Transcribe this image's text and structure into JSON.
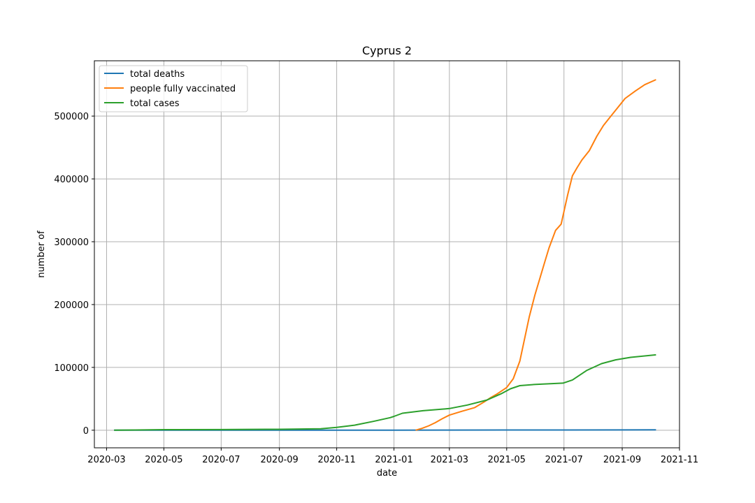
{
  "chart_data": {
    "type": "line",
    "title": "Cyprus 2",
    "xlabel": "date",
    "ylabel": "number of",
    "x_scale": "date",
    "xlim": [
      "2020-02-17",
      "2021-11-01"
    ],
    "ylim": [
      -28000,
      588000
    ],
    "x_ticks": [
      "2020-03-01",
      "2020-05-01",
      "2020-07-01",
      "2020-09-01",
      "2020-11-01",
      "2021-01-01",
      "2021-03-01",
      "2021-05-01",
      "2021-07-01",
      "2021-09-01",
      "2021-11-01"
    ],
    "x_tick_labels": [
      "2020-03",
      "2020-05",
      "2020-07",
      "2020-09",
      "2020-11",
      "2021-01",
      "2021-03",
      "2021-05",
      "2021-07",
      "2021-09",
      "2021-11"
    ],
    "y_ticks": [
      0,
      100000,
      200000,
      300000,
      400000,
      500000
    ],
    "y_tick_labels": [
      "0",
      "100000",
      "200000",
      "300000",
      "400000",
      "500000"
    ],
    "grid": true,
    "legend_position": "upper-left",
    "series": [
      {
        "name": "total deaths",
        "color": "#1f77b4",
        "points": [
          [
            "2020-03-09",
            0
          ],
          [
            "2020-06-01",
            18
          ],
          [
            "2020-09-01",
            20
          ],
          [
            "2020-11-01",
            30
          ],
          [
            "2021-01-01",
            120
          ],
          [
            "2021-03-01",
            230
          ],
          [
            "2021-05-01",
            340
          ],
          [
            "2021-07-01",
            370
          ],
          [
            "2021-09-01",
            520
          ],
          [
            "2021-10-07",
            560
          ]
        ]
      },
      {
        "name": "people fully vaccinated",
        "color": "#ff7f0e",
        "points": [
          [
            "2021-01-24",
            0
          ],
          [
            "2021-01-31",
            3000
          ],
          [
            "2021-02-07",
            7000
          ],
          [
            "2021-02-14",
            12000
          ],
          [
            "2021-02-21",
            18000
          ],
          [
            "2021-03-01",
            24000
          ],
          [
            "2021-03-14",
            30000
          ],
          [
            "2021-03-28",
            36000
          ],
          [
            "2021-04-07",
            45000
          ],
          [
            "2021-04-14",
            52000
          ],
          [
            "2021-04-21",
            58000
          ],
          [
            "2021-05-01",
            68000
          ],
          [
            "2021-05-08",
            82000
          ],
          [
            "2021-05-15",
            110000
          ],
          [
            "2021-05-20",
            145000
          ],
          [
            "2021-05-25",
            180000
          ],
          [
            "2021-05-31",
            215000
          ],
          [
            "2021-06-05",
            240000
          ],
          [
            "2021-06-10",
            265000
          ],
          [
            "2021-06-15",
            290000
          ],
          [
            "2021-06-22",
            318000
          ],
          [
            "2021-06-28",
            328000
          ],
          [
            "2021-07-01",
            348000
          ],
          [
            "2021-07-05",
            375000
          ],
          [
            "2021-07-10",
            405000
          ],
          [
            "2021-07-15",
            418000
          ],
          [
            "2021-07-20",
            430000
          ],
          [
            "2021-07-28",
            445000
          ],
          [
            "2021-08-05",
            468000
          ],
          [
            "2021-08-12",
            485000
          ],
          [
            "2021-08-20",
            500000
          ],
          [
            "2021-08-28",
            515000
          ],
          [
            "2021-09-04",
            528000
          ],
          [
            "2021-09-15",
            540000
          ],
          [
            "2021-09-25",
            550000
          ],
          [
            "2021-10-07",
            558000
          ]
        ]
      },
      {
        "name": "total cases",
        "color": "#2ca02c",
        "points": [
          [
            "2020-03-09",
            0
          ],
          [
            "2020-04-01",
            300
          ],
          [
            "2020-05-01",
            900
          ],
          [
            "2020-07-01",
            1000
          ],
          [
            "2020-08-01",
            1300
          ],
          [
            "2020-09-01",
            1500
          ],
          [
            "2020-10-15",
            2400
          ],
          [
            "2020-11-01",
            4500
          ],
          [
            "2020-11-20",
            8000
          ],
          [
            "2020-12-10",
            14000
          ],
          [
            "2020-12-28",
            20000
          ],
          [
            "2021-01-01",
            22000
          ],
          [
            "2021-01-10",
            27000
          ],
          [
            "2021-02-01",
            31000
          ],
          [
            "2021-03-01",
            34500
          ],
          [
            "2021-03-20",
            40000
          ],
          [
            "2021-04-10",
            48000
          ],
          [
            "2021-04-25",
            58000
          ],
          [
            "2021-05-05",
            66000
          ],
          [
            "2021-05-15",
            71000
          ],
          [
            "2021-06-01",
            73000
          ],
          [
            "2021-06-30",
            75000
          ],
          [
            "2021-07-10",
            80000
          ],
          [
            "2021-07-25",
            95000
          ],
          [
            "2021-08-10",
            106000
          ],
          [
            "2021-08-25",
            112000
          ],
          [
            "2021-09-10",
            116000
          ],
          [
            "2021-10-07",
            120000
          ]
        ]
      }
    ]
  }
}
